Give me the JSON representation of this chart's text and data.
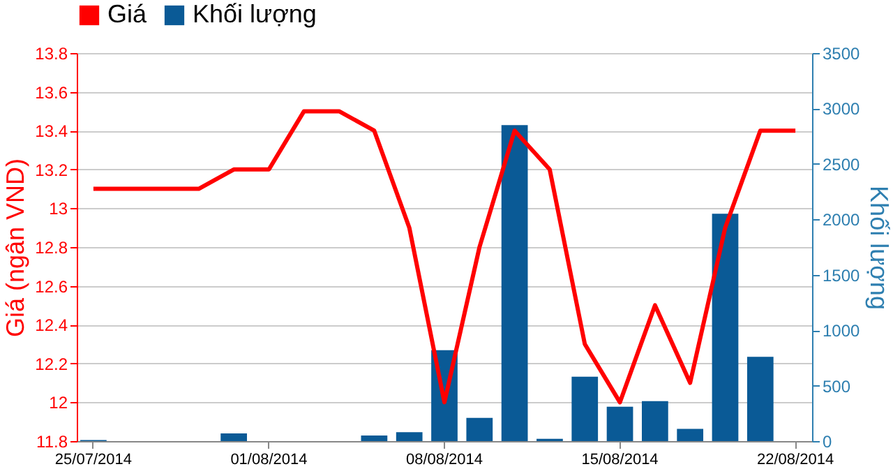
{
  "chart_data": {
    "type": "line",
    "categories": [
      "25/07/2014",
      null,
      null,
      null,
      null,
      "01/08/2014",
      null,
      null,
      null,
      null,
      "08/08/2014",
      null,
      null,
      null,
      null,
      "15/08/2014",
      null,
      null,
      null,
      null,
      "22/08/2014"
    ],
    "ylabel": "Giá (ngân VND)",
    "y2label": "Khối lượng",
    "series": [
      {
        "name": "Giá",
        "color": "#ff0000",
        "values": [
          13.1,
          13.1,
          13.1,
          13.1,
          13.2,
          13.2,
          13.5,
          13.5,
          13.4,
          12.9,
          12.0,
          12.8,
          13.4,
          13.2,
          12.3,
          12.0,
          12.5,
          12.1,
          12.9,
          13.4,
          13.4
        ]
      },
      {
        "name": "Khối lượng",
        "type": "bar",
        "axis": "y2",
        "color": "#0a5a96",
        "values": [
          10,
          0,
          0,
          0,
          70,
          0,
          0,
          0,
          50,
          80,
          820,
          210,
          2850,
          20,
          580,
          310,
          360,
          110,
          2050,
          760,
          null
        ]
      }
    ],
    "ylim": [
      11.8,
      13.8
    ],
    "yticks": [
      11.8,
      12,
      12.2,
      12.4,
      12.6,
      12.8,
      13,
      13.2,
      13.4,
      13.6,
      13.8
    ],
    "y2lim": [
      0,
      3500
    ],
    "y2ticks": [
      0,
      500,
      1000,
      1500,
      2000,
      2500,
      3000,
      3500
    ],
    "grid": "y",
    "legend": "top left",
    "marker": "none",
    "line_style": "solid"
  }
}
